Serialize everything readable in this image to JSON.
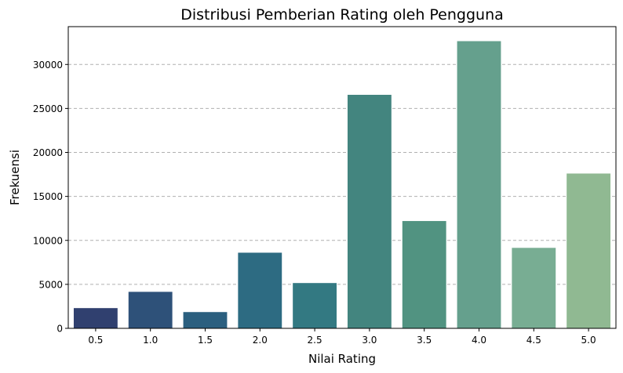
{
  "chart_data": {
    "type": "bar",
    "title": "Distribusi Pemberian Rating oleh Pengguna",
    "xlabel": "Nilai Rating",
    "ylabel": "Frekuensi",
    "categories": [
      "0.5",
      "1.0",
      "1.5",
      "2.0",
      "2.5",
      "3.0",
      "3.5",
      "4.0",
      "4.5",
      "5.0"
    ],
    "values": [
      2300,
      4150,
      1850,
      8600,
      5150,
      26550,
      12200,
      32650,
      9150,
      17600
    ],
    "colors": [
      "#30406f",
      "#2e5179",
      "#2b5f7f",
      "#2d6b82",
      "#337982",
      "#43857f",
      "#519381",
      "#65a08d",
      "#78ad93",
      "#90b992"
    ],
    "yticks": [
      0,
      5000,
      10000,
      15000,
      20000,
      25000,
      30000
    ],
    "ylim": [
      0,
      34300
    ],
    "grid": "y-dashed"
  }
}
